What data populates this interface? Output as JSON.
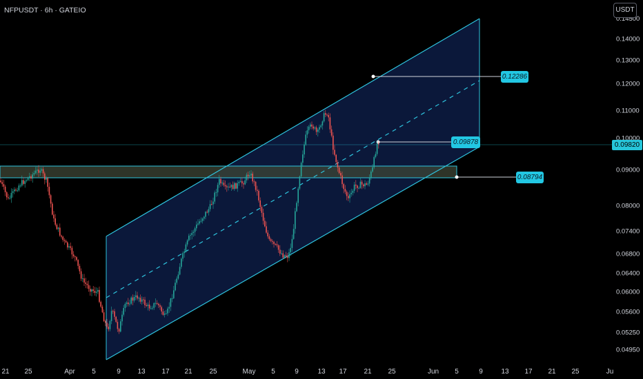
{
  "header": {
    "symbol_line": "NFPUSDT · 6h · GATEIO"
  },
  "currency_button": {
    "label": "USDT"
  },
  "price_axis": {
    "labels": [
      "0.14000",
      "0.13000",
      "0.12000",
      "0.11000",
      "0.10000",
      "0.09000",
      "0.08000",
      "0.07400",
      "0.06800",
      "0.06400",
      "0.06000",
      "0.05600",
      "0.05250",
      "0.04950"
    ],
    "current_price": "0.09820"
  },
  "time_axis": {
    "labels": [
      "21",
      "25",
      "Apr",
      "5",
      "9",
      "13",
      "17",
      "21",
      "25",
      "May",
      "5",
      "9",
      "13",
      "17",
      "21",
      "25",
      "Jun",
      "5",
      "9",
      "13",
      "17",
      "21",
      "25",
      "Ju"
    ]
  },
  "annotations": {
    "channel_top_label": "0.12286",
    "mid_label": "0.09878",
    "support_label": "0.08794"
  },
  "colors": {
    "background": "#000000",
    "channel_line": "#2ec4de",
    "channel_fill": "#0d1c44",
    "zone_fill": "#3d4636",
    "up_candle": "#26a69a",
    "down_candle": "#ef5350",
    "label_bg": "#22c7e3"
  }
}
